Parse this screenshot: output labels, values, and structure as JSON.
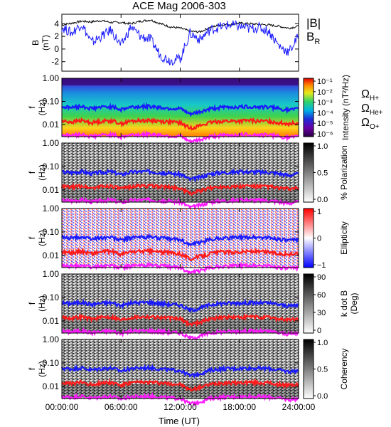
{
  "title": "ACE Mag 2006-303",
  "colors": {
    "B_total": "#000000",
    "B_R": "#1a1aff",
    "H_plus": "#1a1aff",
    "He_plus": "#ff1a1a",
    "O_plus": "#ff1aff"
  },
  "chart_data": [
    {
      "type": "line",
      "panel": "magnetic-field",
      "ylabel": "B\n(nT)",
      "ylim": [
        -3.5,
        5.5
      ],
      "yticks": [
        4,
        2,
        0,
        -2
      ],
      "xlim": [
        0,
        24
      ],
      "legend": [
        "|B|",
        "B_R"
      ],
      "series": [
        {
          "name": "|B|",
          "x": [
            0,
            1,
            2,
            3,
            4,
            5,
            6,
            7,
            8,
            9,
            10,
            11,
            12,
            13,
            14,
            15,
            16,
            17,
            18,
            19,
            20,
            21,
            22,
            23,
            24
          ],
          "values": [
            3.8,
            4.1,
            4.4,
            4.3,
            4.5,
            4.2,
            4.2,
            4.0,
            4.4,
            4.6,
            4.0,
            3.5,
            3.3,
            2.8,
            2.7,
            3.4,
            3.8,
            3.9,
            4.1,
            4.0,
            3.9,
            3.8,
            3.6,
            3.3,
            3.6
          ]
        },
        {
          "name": "B_R",
          "x": [
            0,
            1,
            2,
            3,
            4,
            5,
            6,
            7,
            8,
            9,
            10,
            11,
            12,
            13,
            14,
            15,
            16,
            17,
            18,
            19,
            20,
            21,
            22,
            23,
            24
          ],
          "values": [
            3.5,
            2.5,
            4.0,
            1.0,
            2.0,
            3.0,
            0.5,
            3.5,
            2.0,
            1.5,
            -1.0,
            -1.8,
            -1.5,
            2.5,
            1.5,
            3.0,
            3.5,
            3.8,
            3.6,
            3.2,
            3.4,
            2.8,
            0.5,
            -0.5,
            2.0
          ]
        }
      ]
    },
    {
      "type": "heatmap",
      "panel": "intensity",
      "ylabel": "f\n(Hz)",
      "yscale": "log",
      "ylim": [
        0.003,
        1.0
      ],
      "yticks": [
        "1.00",
        "0.10",
        "0.01"
      ],
      "colorbar": {
        "label": "Intensity (nT²/Hz)",
        "ticks": [
          "10⁻¹",
          "10⁻²",
          "10⁻³",
          "10⁻⁴",
          "10⁻⁵",
          "10⁻⁶"
        ]
      },
      "legend": [
        "Ω_H+",
        "Ω_He+",
        "Ω_O+"
      ]
    },
    {
      "type": "heatmap",
      "panel": "polarization",
      "ylabel": "f\n(Hz)",
      "yscale": "log",
      "yticks": [
        "1.00",
        "0.10",
        "0.01"
      ],
      "colorbar": {
        "label": "% Polarization",
        "ticks": [
          "1.0",
          "0.5",
          "0.0"
        ]
      }
    },
    {
      "type": "heatmap",
      "panel": "ellipticity",
      "ylabel": "f\n(Hz)",
      "yscale": "log",
      "yticks": [
        "1.00",
        "0.10",
        "0.01"
      ],
      "colorbar": {
        "label": "Ellipticity",
        "ticks": [
          "1",
          "0",
          "−1"
        ]
      }
    },
    {
      "type": "heatmap",
      "panel": "wave-normal-angle",
      "ylabel": "f\n(Hz)",
      "yscale": "log",
      "yticks": [
        "1.00",
        "0.10",
        "0.01"
      ],
      "colorbar": {
        "label": "k dot B\n(Deg)",
        "ticks": [
          "90",
          "60",
          "30",
          "0"
        ]
      }
    },
    {
      "type": "heatmap",
      "panel": "coherency",
      "ylabel": "f\n(Hz)",
      "yscale": "log",
      "yticks": [
        "1.00",
        "0.10",
        "0.01"
      ],
      "colorbar": {
        "label": "Coherency",
        "ticks": [
          "1.0",
          "0.5",
          "0.0"
        ]
      }
    }
  ],
  "gyrofrequency_lines": {
    "x": [
      0,
      1,
      2,
      3,
      4,
      5,
      6,
      7,
      8,
      9,
      10,
      11,
      12,
      13,
      14,
      15,
      16,
      17,
      18,
      19,
      20,
      21,
      22,
      23,
      24
    ],
    "H_plus": [
      0.058,
      0.055,
      0.062,
      0.05,
      0.057,
      0.06,
      0.045,
      0.058,
      0.06,
      0.062,
      0.055,
      0.05,
      0.048,
      0.028,
      0.035,
      0.048,
      0.055,
      0.057,
      0.058,
      0.06,
      0.058,
      0.057,
      0.05,
      0.042,
      0.048
    ],
    "He_plus": [
      0.014,
      0.013,
      0.015,
      0.012,
      0.014,
      0.015,
      0.011,
      0.014,
      0.015,
      0.015,
      0.014,
      0.013,
      0.012,
      0.007,
      0.009,
      0.012,
      0.014,
      0.014,
      0.014,
      0.015,
      0.014,
      0.014,
      0.012,
      0.011,
      0.012
    ],
    "O_plus": [
      0.0036,
      0.0034,
      0.0038,
      0.0031,
      0.0035,
      0.0037,
      0.0029,
      0.0036,
      0.0037,
      0.0038,
      0.0035,
      0.0032,
      0.0031,
      0.0018,
      0.0022,
      0.003,
      0.0034,
      0.0035,
      0.0036,
      0.0037,
      0.0036,
      0.0035,
      0.0031,
      0.0027,
      0.003
    ]
  },
  "x_axis": {
    "label": "Time (UT)",
    "ticks": [
      "00:00:00",
      "06:00:00",
      "12:00:00",
      "18:00:00",
      "24:00:00"
    ]
  },
  "legends": {
    "B_total": "|B|",
    "B_R_main": "B",
    "B_R_sub": "R",
    "H_main": "Ω",
    "H_sub": "H+",
    "He_main": "Ω",
    "He_sub": "He+",
    "O_main": "Ω",
    "O_sub": "O+"
  }
}
